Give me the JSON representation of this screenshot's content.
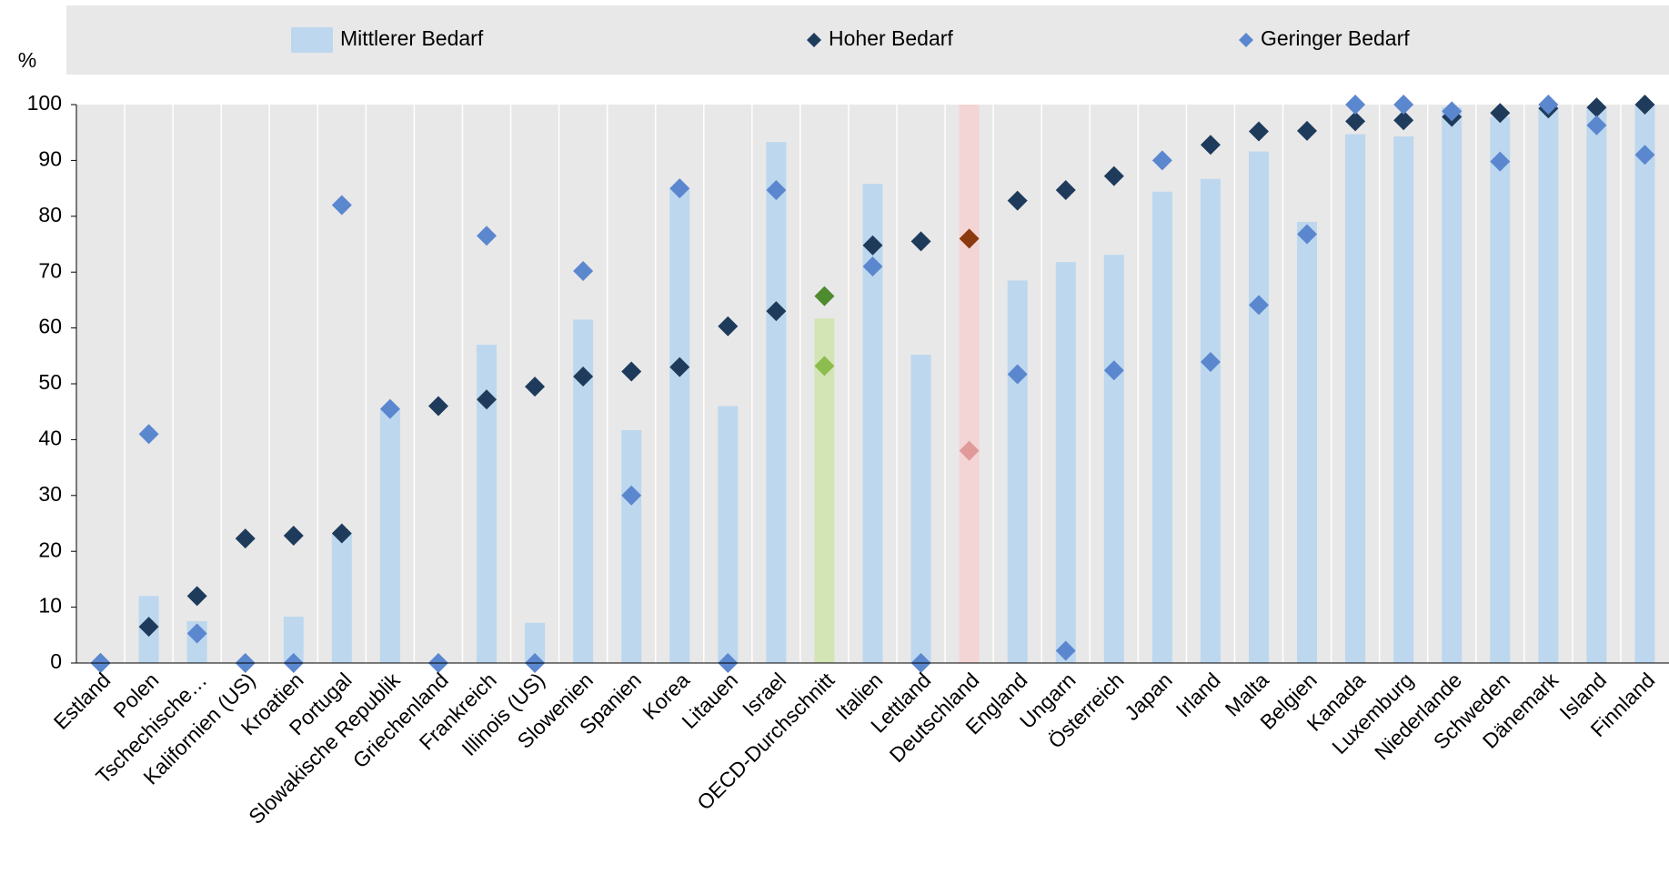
{
  "chart_data": {
    "type": "bar",
    "y_axis_label": "%",
    "categories": [
      "Estland",
      "Polen",
      "Tschechische…",
      "Kalifornien (US)",
      "Kroatien",
      "Portugal",
      "Slowakische Republik",
      "Griechenland",
      "Frankreich",
      "Illinois (US)",
      "Slowenien",
      "Spanien",
      "Korea",
      "Litauen",
      "Israel",
      "OECD-Durchschnitt",
      "Italien",
      "Lettland",
      "Deutschland",
      "England",
      "Ungarn",
      "Österreich",
      "Japan",
      "Irland",
      "Malta",
      "Belgien",
      "Kanada",
      "Luxemburg",
      "Niederlande",
      "Schweden",
      "Dänemark",
      "Island",
      "Finnland"
    ],
    "series": [
      {
        "name": "Mittlerer Bedarf",
        "mark": "bar",
        "color": "#bdd7ee",
        "values": [
          0,
          12,
          7.5,
          0,
          8.3,
          23,
          45.5,
          0,
          57,
          7.2,
          61.5,
          41.7,
          85,
          46,
          93.3,
          61.7,
          85.8,
          55.2,
          100,
          68.5,
          71.8,
          73.1,
          84.4,
          86.7,
          91.6,
          79,
          94.7,
          94.3,
          99.5,
          97.8,
          99.6,
          99.6,
          100
        ]
      },
      {
        "name": "Hoher Bedarf",
        "mark": "diamond",
        "color": "#1f3b5c",
        "values": [
          0,
          6.5,
          12,
          22.3,
          22.8,
          23.2,
          null,
          46,
          47.2,
          49.5,
          51.3,
          52.2,
          53,
          60.3,
          63,
          65.7,
          74.8,
          75.5,
          76,
          82.8,
          84.7,
          87.2,
          null,
          92.8,
          95.2,
          95.3,
          97,
          97.2,
          97.8,
          98.5,
          99.3,
          99.5,
          100
        ]
      },
      {
        "name": "Geringer Bedarf",
        "mark": "diamond",
        "color": "#5b87cf",
        "values": [
          0,
          41,
          5.3,
          0,
          0,
          82,
          45.5,
          0,
          76.5,
          0,
          70.2,
          30,
          85,
          0,
          84.7,
          53.2,
          71,
          0,
          38,
          51.7,
          2.2,
          52.4,
          90,
          53.9,
          64.1,
          76.8,
          100,
          100,
          98.8,
          89.8,
          100,
          96.3,
          91
        ]
      }
    ],
    "highlights": {
      "OECD-Durchschnitt": [
        "#d3e5b5",
        "#4e8a2e",
        "#8cbd4e"
      ],
      "Deutschland": [
        "#f4d5d5",
        "#8b3a0f",
        "#e09a9a"
      ]
    },
    "ylim": [
      0,
      100
    ],
    "yticks": [
      0,
      10,
      20,
      30,
      40,
      50,
      60,
      70,
      80,
      90,
      100
    ],
    "legend": "top"
  }
}
